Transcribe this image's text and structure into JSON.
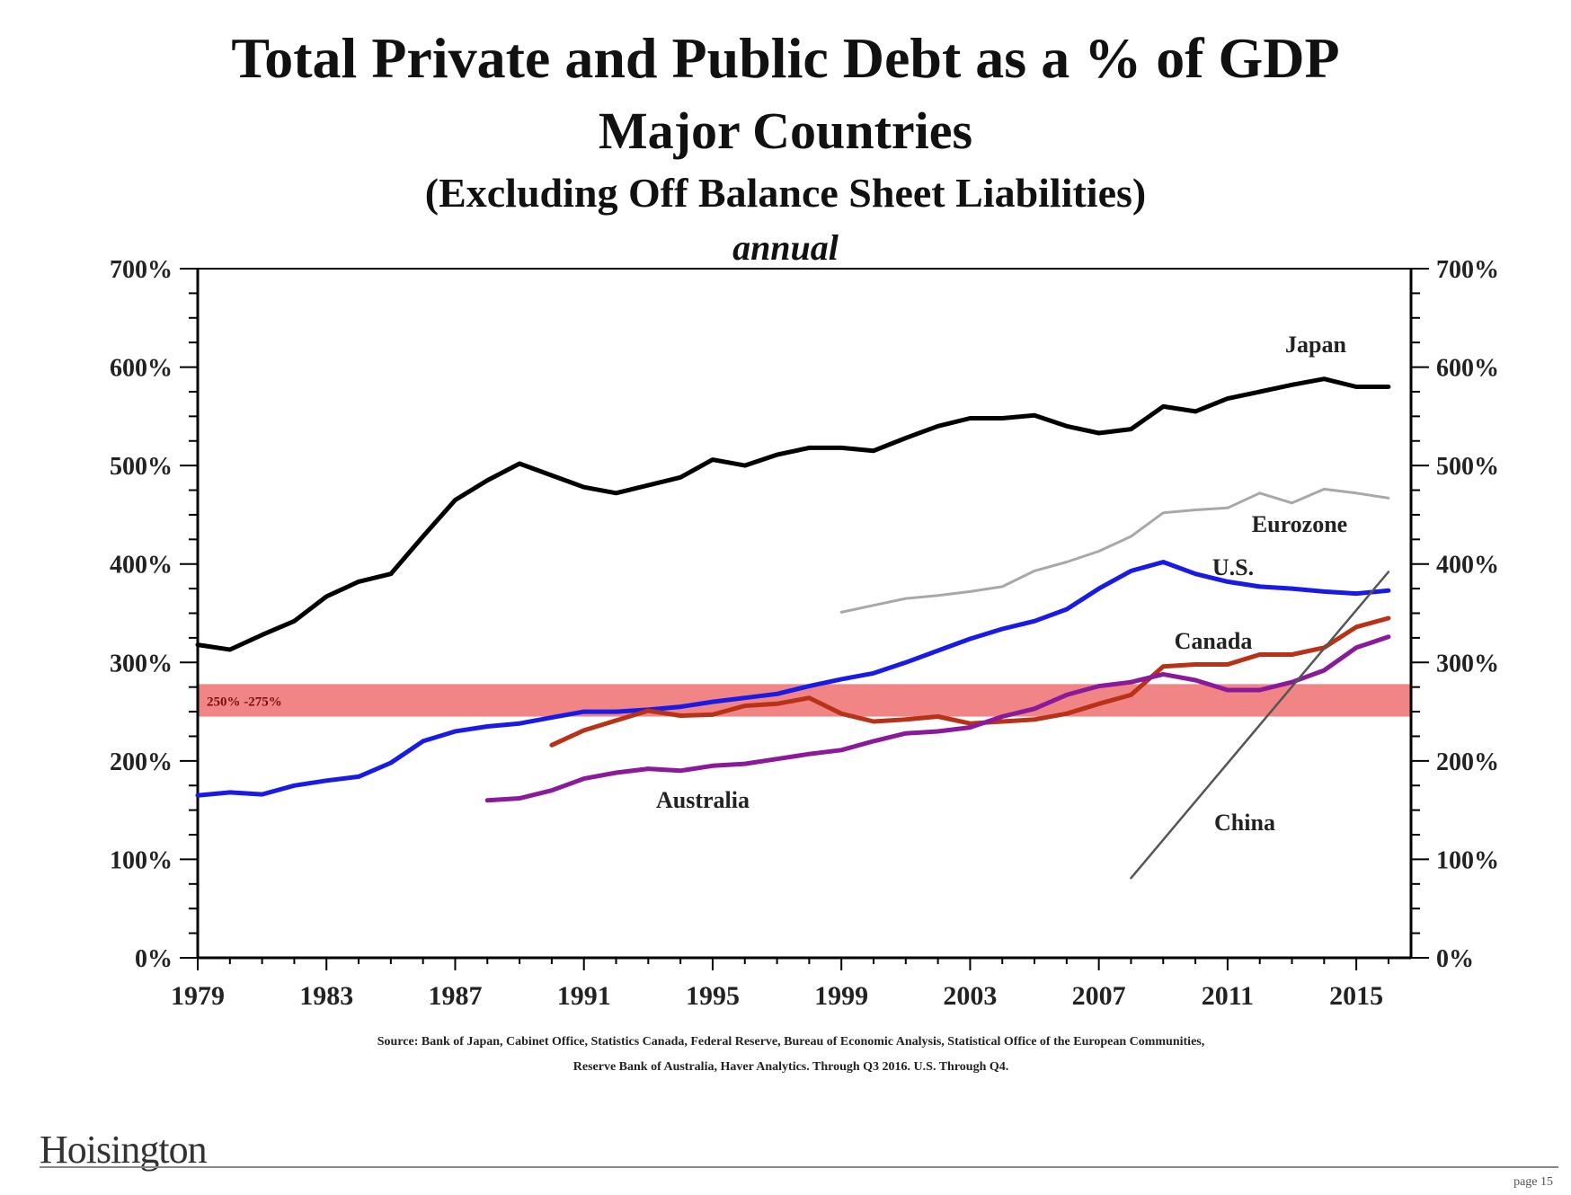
{
  "chart_data": {
    "type": "line",
    "title": "Total Private and Public Debt as a % of GDP",
    "subtitle": "Major Countries",
    "subtitle2": "(Excluding Off Balance Sheet Liabilities)",
    "frequency": "annual",
    "xlabel": "",
    "ylabel": "",
    "xlim": [
      1979,
      2016.7
    ],
    "ylim": [
      0,
      700
    ],
    "x_ticks": [
      "1979",
      "1983",
      "1987",
      "1991",
      "1995",
      "1999",
      "2003",
      "2007",
      "2011",
      "2015"
    ],
    "y_ticks": [
      "0%",
      "100%",
      "200%",
      "300%",
      "400%",
      "500%",
      "600%",
      "700%"
    ],
    "band": {
      "label": "250% -275%",
      "low": 245,
      "high": 278,
      "color": "#ef7878"
    },
    "series": [
      {
        "name": "Japan",
        "color": "#000000",
        "x": [
          1979,
          1980,
          1981,
          1982,
          1983,
          1984,
          1985,
          1986,
          1987,
          1988,
          1989,
          1990,
          1991,
          1992,
          1993,
          1994,
          1995,
          1996,
          1997,
          1998,
          1999,
          2000,
          2001,
          2002,
          2003,
          2004,
          2005,
          2006,
          2007,
          2008,
          2009,
          2010,
          2011,
          2012,
          2013,
          2014,
          2015,
          2016
        ],
        "y": [
          318,
          313,
          328,
          342,
          367,
          382,
          390,
          428,
          465,
          485,
          502,
          490,
          478,
          472,
          480,
          488,
          506,
          500,
          511,
          518,
          518,
          515,
          528,
          540,
          548,
          548,
          551,
          540,
          533,
          537,
          560,
          555,
          568,
          575,
          582,
          588,
          580,
          580
        ]
      },
      {
        "name": "Eurozone",
        "color": "#a8a8a8",
        "x": [
          1999,
          2000,
          2001,
          2002,
          2003,
          2004,
          2005,
          2006,
          2007,
          2008,
          2009,
          2010,
          2011,
          2012,
          2013,
          2014,
          2015,
          2016
        ],
        "y": [
          351,
          358,
          365,
          368,
          372,
          377,
          393,
          402,
          413,
          428,
          452,
          455,
          457,
          472,
          462,
          476,
          472,
          467
        ]
      },
      {
        "name": "U.S.",
        "color": "#1a1ae6",
        "x": [
          1979,
          1980,
          1981,
          1982,
          1983,
          1984,
          1985,
          1986,
          1987,
          1988,
          1989,
          1990,
          1991,
          1992,
          1993,
          1994,
          1995,
          1996,
          1997,
          1998,
          1999,
          2000,
          2001,
          2002,
          2003,
          2004,
          2005,
          2006,
          2007,
          2008,
          2009,
          2010,
          2011,
          2012,
          2013,
          2014,
          2015,
          2016
        ],
        "y": [
          165,
          168,
          166,
          175,
          180,
          184,
          198,
          220,
          230,
          235,
          238,
          244,
          250,
          250,
          252,
          255,
          260,
          264,
          268,
          276,
          283,
          289,
          300,
          312,
          324,
          334,
          342,
          354,
          375,
          393,
          402,
          390,
          382,
          377,
          375,
          372,
          370,
          373
        ]
      },
      {
        "name": "Canada",
        "color": "#b83218",
        "x": [
          1990,
          1991,
          1992,
          1993,
          1994,
          1995,
          1996,
          1997,
          1998,
          1999,
          2000,
          2001,
          2002,
          2003,
          2004,
          2005,
          2006,
          2007,
          2008,
          2009,
          2010,
          2011,
          2012,
          2013,
          2014,
          2015,
          2016
        ],
        "y": [
          216,
          231,
          241,
          251,
          246,
          247,
          256,
          258,
          264,
          248,
          240,
          242,
          245,
          238,
          240,
          242,
          248,
          258,
          267,
          296,
          298,
          298,
          308,
          308,
          315,
          336,
          345
        ]
      },
      {
        "name": "Australia",
        "color": "#8a1a9a",
        "x": [
          1988,
          1989,
          1990,
          1991,
          1992,
          1993,
          1994,
          1995,
          1996,
          1997,
          1998,
          1999,
          2000,
          2001,
          2002,
          2003,
          2004,
          2005,
          2006,
          2007,
          2008,
          2009,
          2010,
          2011,
          2012,
          2013,
          2014,
          2015,
          2016
        ],
        "y": [
          160,
          162,
          170,
          182,
          188,
          192,
          190,
          195,
          197,
          202,
          207,
          211,
          220,
          228,
          230,
          234,
          245,
          253,
          267,
          276,
          280,
          288,
          282,
          272,
          272,
          280,
          292,
          315,
          326
        ]
      },
      {
        "name": "China",
        "color": "#555555",
        "x": [
          2008,
          2016
        ],
        "y": [
          81,
          392
        ]
      }
    ],
    "annotations": [
      {
        "text": "Japan",
        "series": "Japan"
      },
      {
        "text": "Eurozone",
        "series": "Eurozone"
      },
      {
        "text": "U.S.",
        "series": "U.S."
      },
      {
        "text": "Canada",
        "series": "Canada"
      },
      {
        "text": "Australia",
        "series": "Australia"
      },
      {
        "text": "China",
        "series": "China"
      }
    ],
    "grid": false,
    "legend": "none"
  },
  "source_line1": "Source: Bank of Japan, Cabinet Office, Statistics Canada, Federal Reserve, Bureau of Economic Analysis, Statistical Office of the European Communities,",
  "source_line2": "Reserve Bank of Australia, Haver Analytics. Through Q3 2016. U.S. Through Q4.",
  "logo_text": "Hoisington",
  "page_label": "page 15"
}
